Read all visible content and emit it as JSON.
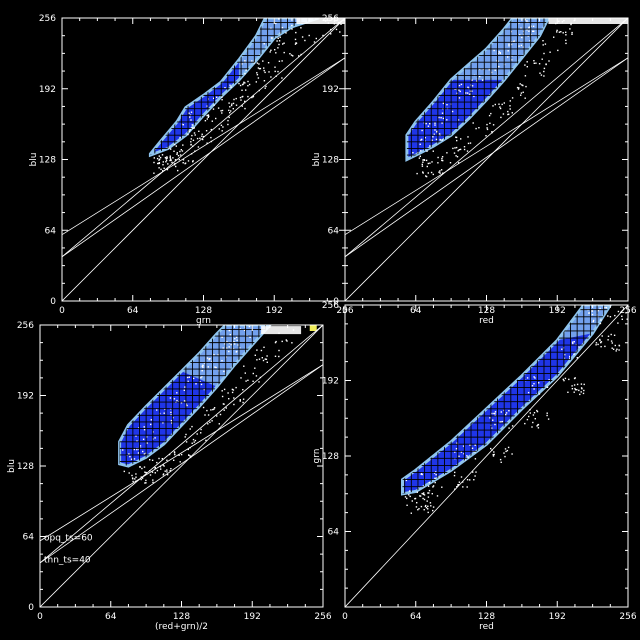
{
  "chart_data": [
    {
      "type": "scatter",
      "panel": "top-left",
      "xlabel": "grn",
      "ylabel": "blu",
      "xlim": [
        0,
        256
      ],
      "ylim": [
        0,
        256
      ],
      "xticks": [
        "0",
        "64",
        "128",
        "192",
        "256"
      ],
      "yticks": [
        "0",
        "64",
        "128",
        "192",
        "256"
      ],
      "reference_lines": [
        {
          "x": [
            0,
            256
          ],
          "y": [
            0,
            256
          ]
        },
        {
          "x": [
            0,
            256
          ],
          "y": [
            40,
            220
          ]
        },
        {
          "x": [
            0,
            256
          ],
          "y": [
            60,
            220
          ]
        },
        {
          "x": [
            0,
            256
          ],
          "y": [
            40,
            256
          ]
        }
      ],
      "density_region": [
        [
          80,
          133
        ],
        [
          88,
          143
        ],
        [
          104,
          162
        ],
        [
          112,
          175
        ],
        [
          128,
          186
        ],
        [
          144,
          198
        ],
        [
          160,
          218
        ],
        [
          176,
          240
        ],
        [
          184,
          256
        ],
        [
          232,
          256
        ],
        [
          208,
          248
        ],
        [
          192,
          238
        ],
        [
          176,
          218
        ],
        [
          160,
          200
        ],
        [
          144,
          185
        ],
        [
          128,
          168
        ],
        [
          112,
          150
        ],
        [
          96,
          138
        ],
        [
          80,
          132
        ]
      ]
    },
    {
      "type": "scatter",
      "panel": "top-right",
      "xlabel": "red",
      "ylabel": "blu",
      "xlim": [
        0,
        256
      ],
      "ylim": [
        0,
        256
      ],
      "xticks": [
        "0",
        "64",
        "128",
        "192",
        "256"
      ],
      "yticks": [
        "0",
        "64",
        "128",
        "192",
        "256"
      ],
      "reference_lines": [
        {
          "x": [
            0,
            256
          ],
          "y": [
            0,
            256
          ]
        },
        {
          "x": [
            0,
            256
          ],
          "y": [
            40,
            220
          ]
        },
        {
          "x": [
            0,
            256
          ],
          "y": [
            60,
            220
          ]
        },
        {
          "x": [
            0,
            256
          ],
          "y": [
            40,
            256
          ]
        }
      ],
      "density_region": [
        [
          56,
          128
        ],
        [
          56,
          150
        ],
        [
          64,
          162
        ],
        [
          80,
          180
        ],
        [
          96,
          200
        ],
        [
          112,
          214
        ],
        [
          128,
          228
        ],
        [
          144,
          246
        ],
        [
          152,
          256
        ],
        [
          184,
          256
        ],
        [
          176,
          240
        ],
        [
          160,
          220
        ],
        [
          144,
          200
        ],
        [
          128,
          182
        ],
        [
          112,
          165
        ],
        [
          96,
          150
        ],
        [
          80,
          140
        ],
        [
          64,
          132
        ]
      ]
    },
    {
      "type": "scatter",
      "panel": "bottom-left",
      "xlabel": "(red+grn)/2",
      "ylabel": "blu",
      "xlim": [
        0,
        256
      ],
      "ylim": [
        0,
        256
      ],
      "xticks": [
        "0",
        "64",
        "128",
        "192",
        "256"
      ],
      "yticks": [
        "0",
        "64",
        "128",
        "192",
        "256"
      ],
      "annotations": [
        "opq_ts=60",
        "thn_ts=40"
      ],
      "reference_lines": [
        {
          "x": [
            0,
            256
          ],
          "y": [
            0,
            256
          ]
        },
        {
          "x": [
            0,
            256
          ],
          "y": [
            40,
            220
          ]
        },
        {
          "x": [
            0,
            256
          ],
          "y": [
            60,
            220
          ]
        },
        {
          "x": [
            0,
            256
          ],
          "y": [
            40,
            256
          ]
        }
      ],
      "density_region": [
        [
          72,
          130
        ],
        [
          72,
          150
        ],
        [
          80,
          165
        ],
        [
          96,
          182
        ],
        [
          112,
          198
        ],
        [
          128,
          214
        ],
        [
          144,
          230
        ],
        [
          160,
          248
        ],
        [
          168,
          256
        ],
        [
          208,
          256
        ],
        [
          192,
          238
        ],
        [
          176,
          220
        ],
        [
          160,
          200
        ],
        [
          144,
          182
        ],
        [
          128,
          165
        ],
        [
          112,
          148
        ],
        [
          96,
          136
        ],
        [
          80,
          128
        ]
      ]
    },
    {
      "type": "scatter",
      "panel": "bottom-right",
      "xlabel": "red",
      "ylabel": "grn",
      "xlim": [
        0,
        256
      ],
      "ylim": [
        0,
        256
      ],
      "xticks": [
        "0",
        "64",
        "128",
        "192",
        "256"
      ],
      "yticks": [
        "64",
        "128",
        "192",
        "256"
      ],
      "reference_lines": [
        {
          "x": [
            0,
            256
          ],
          "y": [
            0,
            256
          ]
        }
      ],
      "density_region": [
        [
          52,
          96
        ],
        [
          52,
          108
        ],
        [
          64,
          116
        ],
        [
          96,
          140
        ],
        [
          128,
          168
        ],
        [
          160,
          196
        ],
        [
          192,
          226
        ],
        [
          216,
          256
        ],
        [
          240,
          256
        ],
        [
          224,
          232
        ],
        [
          192,
          196
        ],
        [
          160,
          168
        ],
        [
          128,
          138
        ],
        [
          96,
          116
        ],
        [
          64,
          98
        ]
      ]
    }
  ],
  "colors": {
    "background": "#000000",
    "axes": "#ffffff",
    "density_dense": "#1f35e8",
    "density_mid": "#8fc4ef",
    "density_sparse": "#ffffff",
    "grid_overlay": "#000000",
    "hot_spot": "#f2ef5a"
  }
}
